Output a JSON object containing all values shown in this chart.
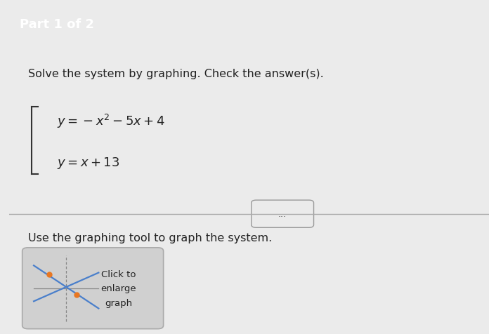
{
  "header_text": "Part 1 of 2",
  "header_bg": "#3a9bbf",
  "header_text_color": "#ffffff",
  "body_bg": "#ebebeb",
  "title_text": "Solve the system by graphing. Check the answer(s).",
  "divider_color": "#aaaaaa",
  "dots_text": "...",
  "instruction_text": "Use the graphing tool to graph the system.",
  "button_text_line1": "Click to",
  "button_text_line2": "enlarge",
  "button_text_line3": "graph",
  "button_bg": "#d0d0d0",
  "button_border": "#aaaaaa",
  "line_color": "#4a7fcb",
  "dot_color": "#e87722",
  "left_bar_color": "#444444",
  "font_color": "#222222"
}
